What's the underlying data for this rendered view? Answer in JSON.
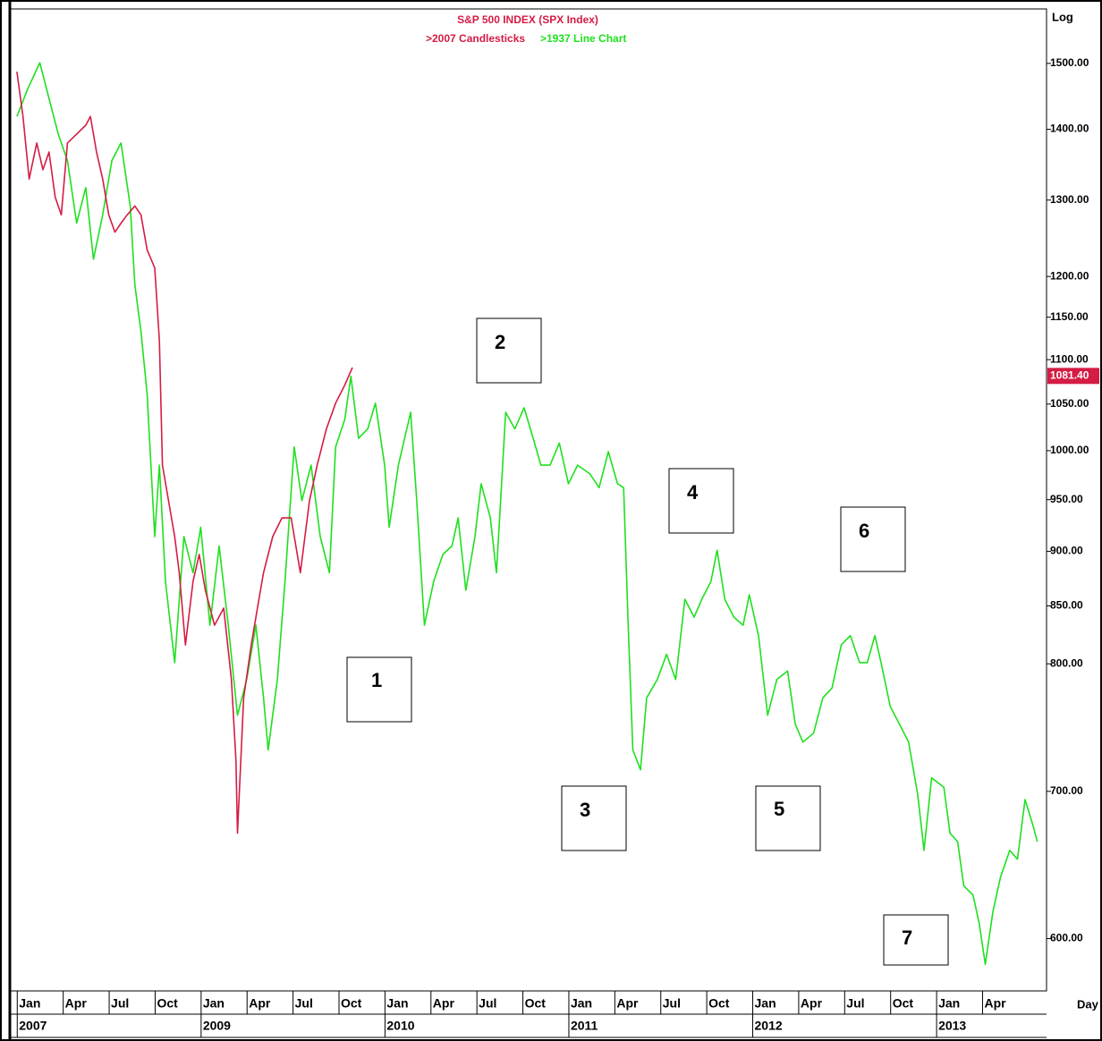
{
  "chart_data": {
    "type": "line",
    "title": "S&P 500 INDEX (SPX Index)",
    "scale_label": "Log",
    "period_label": "Day",
    "log_scale": true,
    "xlim": [
      -0.6,
      67
    ],
    "ylim": [
      568,
      1588
    ],
    "yticks": [
      {
        "value": 600,
        "label": "600.00"
      },
      {
        "value": 700,
        "label": "700.00"
      },
      {
        "value": 800,
        "label": "800.00"
      },
      {
        "value": 850,
        "label": "850.00"
      },
      {
        "value": 900,
        "label": "900.00"
      },
      {
        "value": 950,
        "label": "950.00"
      },
      {
        "value": 1000,
        "label": "1000.00"
      },
      {
        "value": 1050,
        "label": "1050.00"
      },
      {
        "value": 1100,
        "label": "1100.00"
      },
      {
        "value": 1150,
        "label": "1150.00"
      },
      {
        "value": 1200,
        "label": "1200.00"
      },
      {
        "value": 1300,
        "label": "1300.00"
      },
      {
        "value": 1400,
        "label": "1400.00"
      },
      {
        "value": 1500,
        "label": "1500.00"
      }
    ],
    "xticks": [
      {
        "value": 0,
        "label": "Jan"
      },
      {
        "value": 3,
        "label": "Apr"
      },
      {
        "value": 6,
        "label": "Jul"
      },
      {
        "value": 9,
        "label": "Oct"
      },
      {
        "value": 12,
        "label": "Jan"
      },
      {
        "value": 15,
        "label": "Apr"
      },
      {
        "value": 18,
        "label": "Jul"
      },
      {
        "value": 21,
        "label": "Oct"
      },
      {
        "value": 24,
        "label": "Jan"
      },
      {
        "value": 27,
        "label": "Apr"
      },
      {
        "value": 30,
        "label": "Jul"
      },
      {
        "value": 33,
        "label": "Oct"
      },
      {
        "value": 36,
        "label": "Jan"
      },
      {
        "value": 39,
        "label": "Apr"
      },
      {
        "value": 42,
        "label": "Jul"
      },
      {
        "value": 45,
        "label": "Oct"
      },
      {
        "value": 48,
        "label": "Jan"
      },
      {
        "value": 51,
        "label": "Apr"
      },
      {
        "value": 54,
        "label": "Jul"
      },
      {
        "value": 57,
        "label": "Oct"
      },
      {
        "value": 60,
        "label": "Jan"
      },
      {
        "value": 63,
        "label": "Apr"
      }
    ],
    "year_ticks": [
      {
        "value": 0,
        "label": "2007"
      },
      {
        "value": 12,
        "label": "2009"
      },
      {
        "value": 24,
        "label": "2010"
      },
      {
        "value": 36,
        "label": "2011"
      },
      {
        "value": 48,
        "label": "2012"
      },
      {
        "value": 60,
        "label": "2013"
      }
    ],
    "last_value": {
      "value": 1081.4,
      "label": "1081.40"
    },
    "annotations": [
      "1",
      "2",
      "3",
      "4",
      "5",
      "6",
      "7"
    ],
    "series": [
      {
        "name": ">2007 Candlesticks",
        "color": "#d41c44",
        "x": [
          -0.2,
          0.2,
          0.6,
          1.1,
          1.5,
          1.9,
          2.3,
          2.7,
          3.1,
          3.7,
          4.3,
          4.6,
          5.0,
          5.4,
          5.8,
          6.2,
          6.6,
          7.0,
          7.5,
          7.9,
          8.3,
          8.8,
          9.1,
          9.3,
          9.7,
          10.1,
          10.4,
          10.8,
          11.3,
          11.7,
          12.1,
          12.7,
          13.3,
          13.8,
          14.1,
          14.2,
          14.6,
          15.1,
          15.5,
          15.9,
          16.5,
          17.1,
          17.7,
          18.3,
          18.9,
          19.4,
          20.0,
          20.6,
          21.2,
          21.7
        ],
        "values": [
          1487,
          1419,
          1329,
          1380,
          1342,
          1367,
          1304,
          1280,
          1380,
          1393,
          1406,
          1419,
          1367,
          1329,
          1280,
          1257,
          1269,
          1280,
          1292,
          1280,
          1234,
          1211,
          1122,
          985,
          949,
          914,
          880,
          816,
          872,
          897,
          864,
          833,
          848,
          787,
          723,
          670,
          772,
          816,
          848,
          880,
          914,
          932,
          932,
          880,
          949,
          985,
          1023,
          1051,
          1071,
          1091
        ]
      },
      {
        "name": ">1937 Line Chart",
        "color": "#1fe01f",
        "x": [
          -0.2,
          0.5,
          1.3,
          1.9,
          2.5,
          3.1,
          3.7,
          4.3,
          4.8,
          5.4,
          6.0,
          6.6,
          7.2,
          7.5,
          7.9,
          8.3,
          8.8,
          9.1,
          9.5,
          10.1,
          10.7,
          11.3,
          11.8,
          12.4,
          13.0,
          13.6,
          14.2,
          14.8,
          15.4,
          15.9,
          16.2,
          16.8,
          17.3,
          17.9,
          18.4,
          19.0,
          19.6,
          20.2,
          20.6,
          21.2,
          21.6,
          22.1,
          22.7,
          23.2,
          23.8,
          24.1,
          24.7,
          25.5,
          25.9,
          26.4,
          27.0,
          27.6,
          28.2,
          28.6,
          29.1,
          29.7,
          30.1,
          30.7,
          31.1,
          31.4,
          31.7,
          32.3,
          32.9,
          33.5,
          34.0,
          34.6,
          35.2,
          35.8,
          36.4,
          37.2,
          37.8,
          38.4,
          39.0,
          39.4,
          39.7,
          40.0,
          40.5,
          40.9,
          41.6,
          42.2,
          42.8,
          43.4,
          44.0,
          44.5,
          45.1,
          45.5,
          46.0,
          46.6,
          47.2,
          47.6,
          48.2,
          48.8,
          49.4,
          50.1,
          50.6,
          51.1,
          51.8,
          52.4,
          53.0,
          53.6,
          54.2,
          54.8,
          55.3,
          55.8,
          56.2,
          56.8,
          57.4,
          58.0,
          58.6,
          59.0,
          59.5,
          60.3,
          60.7,
          61.2,
          61.6,
          62.2,
          62.6,
          63.0,
          63.5,
          64.0,
          64.6,
          65.1,
          65.6,
          66.1,
          66.4
        ],
        "values": [
          1419,
          1460,
          1501,
          1446,
          1393,
          1355,
          1269,
          1317,
          1222,
          1280,
          1355,
          1380,
          1292,
          1189,
          1133,
          1061,
          914,
          985,
          872,
          801,
          914,
          880,
          923,
          833,
          905,
          833,
          758,
          787,
          833,
          772,
          731,
          787,
          872,
          1004,
          949,
          985,
          914,
          880,
          1004,
          1033,
          1081,
          1013,
          1023,
          1051,
          985,
          923,
          985,
          1041,
          949,
          833,
          872,
          897,
          905,
          932,
          864,
          914,
          966,
          932,
          880,
          957,
          1041,
          1023,
          1046,
          1013,
          985,
          985,
          1008,
          966,
          985,
          976,
          962,
          999,
          966,
          962,
          833,
          731,
          716,
          772,
          787,
          808,
          787,
          856,
          840,
          856,
          872,
          901,
          856,
          840,
          833,
          860,
          824,
          758,
          787,
          794,
          751,
          737,
          744,
          772,
          780,
          816,
          824,
          801,
          801,
          824,
          801,
          765,
          751,
          737,
          697,
          658,
          710,
          703,
          670,
          664,
          634,
          628,
          610,
          584,
          617,
          640,
          658,
          652,
          694,
          676,
          664
        ]
      }
    ]
  }
}
